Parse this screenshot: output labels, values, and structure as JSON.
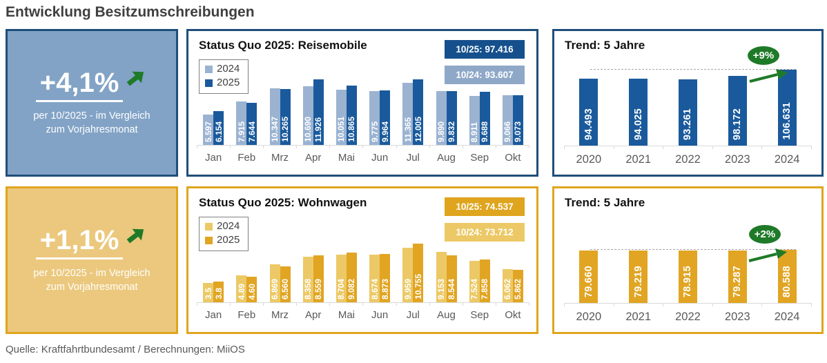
{
  "page": {
    "title": "Entwicklung Besitzumschreibungen",
    "footer": "Quelle: Kraftfahrtbundesamt / Berechnungen: MiiOS"
  },
  "colors": {
    "blue_border": "#1F4E79",
    "blue_bar_dark": "#1A5A9C",
    "blue_bar_light": "#9BB3D1",
    "blue_badge_dark": "#15508C",
    "blue_badge_light": "#8FA8C8",
    "blue_kpi_bg": "#82A3C6",
    "gold_border": "#E0A51E",
    "gold_bar_dark": "#E1A523",
    "gold_bar_light": "#ECC966",
    "gold_kpi_bg": "#EBC87D",
    "green_accent": "#1F7A28",
    "axis_gray": "#D9D9D9",
    "label_gray": "#595959"
  },
  "sections": [
    {
      "kpi": {
        "value": "+4,1%",
        "caption_line1": "per 10/2025 - im Vergleich",
        "caption_line2": "zum Vorjahresmonat"
      },
      "status": {
        "title": "Status Quo 2025: Reisemobile",
        "badges": [
          "10/25: 97.416",
          "10/24: 93.607"
        ]
      },
      "trend": {
        "title": "Trend: 5 Jahre",
        "annotation": "+9%"
      }
    },
    {
      "kpi": {
        "value": "+1,1%",
        "caption_line1": "per 10/2025 - im Vergleich",
        "caption_line2": "zum Vorjahresmonat"
      },
      "status": {
        "title": "Status Quo 2025: Wohnwagen",
        "badges": [
          "10/25: 74.537",
          "10/24: 73.712"
        ]
      },
      "trend": {
        "title": "Trend: 5 Jahre",
        "annotation": "+2%"
      }
    }
  ],
  "chart_data": [
    {
      "id": "reisemobile-monthly",
      "type": "bar",
      "title": "Status Quo 2025: Reisemobile",
      "categories": [
        "Jan",
        "Feb",
        "Mrz",
        "Apr",
        "Mai",
        "Jun",
        "Jul",
        "Aug",
        "Sep",
        "Okt"
      ],
      "series": [
        {
          "name": "2024",
          "color": "#9BB3D1",
          "values": [
            5597,
            7915,
            10347,
            10690,
            10051,
            9775,
            11365,
            9890,
            8911,
            9066
          ],
          "labels": [
            "5.597",
            "7.915",
            "10.347",
            "10.690",
            "10.051",
            "9.775",
            "11.365",
            "9.890",
            "8.911",
            "9.066"
          ]
        },
        {
          "name": "2025",
          "color": "#1A5A9C",
          "values": [
            6154,
            7644,
            10265,
            11926,
            10865,
            9964,
            12005,
            9832,
            9688,
            9073
          ],
          "labels": [
            "6.154",
            "7.644",
            "10.265",
            "11.926",
            "10.865",
            "9.964",
            "12.005",
            "9.832",
            "9.688",
            "9.073"
          ]
        }
      ],
      "ylim": [
        0,
        12600
      ],
      "ymax": 12600,
      "grid": false,
      "legend_position": "top-left",
      "totals": {
        "2025": "10/25: 97.416",
        "2024": "10/24: 93.607"
      }
    },
    {
      "id": "reisemobile-trend",
      "type": "bar",
      "title": "Trend: 5 Jahre",
      "categories": [
        "2020",
        "2021",
        "2022",
        "2023",
        "2024"
      ],
      "values": [
        94493,
        94025,
        93261,
        98172,
        106631
      ],
      "labels": [
        "94.493",
        "94.025",
        "93.261",
        "98.172",
        "106.631"
      ],
      "color": "#1A5A9C",
      "ylim": [
        0,
        110000
      ],
      "ymax": 110000,
      "grid": false,
      "annotation": "+9%",
      "annotation_note": "dashed reference line at 2024 level, green arrow from 2023 to 2024"
    },
    {
      "id": "wohnwagen-monthly",
      "type": "bar",
      "title": "Status Quo 2025: Wohnwagen",
      "categories": [
        "Jan",
        "Feb",
        "Mrz",
        "Apr",
        "Mai",
        "Jun",
        "Jul",
        "Aug",
        "Sep",
        "Okt"
      ],
      "series": [
        {
          "name": "2024",
          "color": "#ECC966",
          "values": [
            3516,
            4893,
            6869,
            8358,
            8704,
            8674,
            9959,
            9153,
            7524,
            6062
          ],
          "labels": [
            "3.5",
            "4.89",
            "6.869",
            "8.358",
            "8.704",
            "8.674",
            "9.959",
            "9.153",
            "7.524",
            "6.062"
          ]
        },
        {
          "name": "2025",
          "color": "#E1A523",
          "values": [
            3840,
            4604,
            6560,
            8559,
            9082,
            8873,
            10755,
            8544,
            7858,
            5862
          ],
          "labels": [
            "3.8",
            "4.60",
            "6.560",
            "8.559",
            "9.082",
            "8.873",
            "10.755",
            "8.544",
            "7.858",
            "5.862"
          ]
        }
      ],
      "ylim": [
        0,
        12600
      ],
      "ymax": 12600,
      "grid": false,
      "legend_position": "top-left",
      "totals": {
        "2025": "10/25: 74.537",
        "2024": "10/24: 73.712"
      }
    },
    {
      "id": "wohnwagen-trend",
      "type": "bar",
      "title": "Trend: 5 Jahre",
      "categories": [
        "2020",
        "2021",
        "2022",
        "2023",
        "2024"
      ],
      "values": [
        79660,
        79219,
        78915,
        79287,
        80588
      ],
      "labels": [
        "79.660",
        "79.219",
        "78.915",
        "79.287",
        "80.588"
      ],
      "color": "#E1A523",
      "ylim": [
        0,
        118000
      ],
      "ymax": 118000,
      "grid": false,
      "annotation": "+2%",
      "annotation_note": "dashed reference line at 2024 level, green arrow from 2023 to 2024"
    }
  ]
}
